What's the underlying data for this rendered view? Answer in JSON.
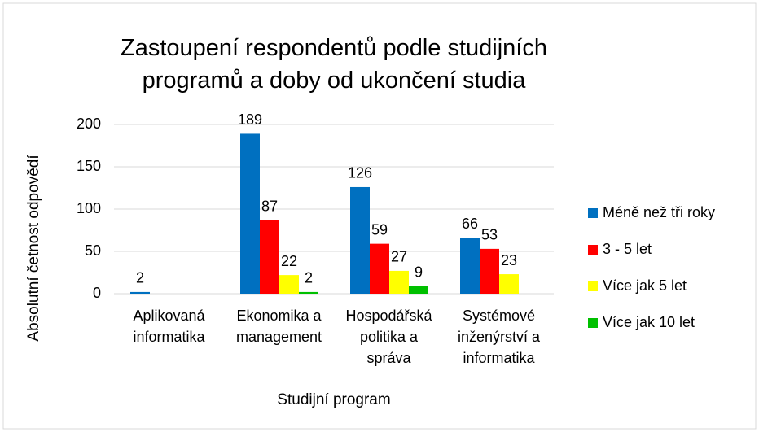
{
  "chart_data": {
    "type": "bar",
    "title": "Zastoupení respondentů podle studijních\nprogramů a doby od ukončení studia",
    "x_label": "Studijní program",
    "y_label": "Absolutní četnost odpovědí",
    "categories": [
      "Aplikovaná\ninformatika",
      "Ekonomika a\nmanagement",
      "Hospodářská\npolitika a\nspráva",
      "Systémové\ninženýrství a\ninformatika"
    ],
    "series": [
      {
        "name": "Méně než tři roky",
        "color": "#0070c0",
        "values": [
          2,
          189,
          126,
          66
        ]
      },
      {
        "name": "3 - 5 let",
        "color": "#ff0000",
        "values": [
          null,
          87,
          59,
          53
        ]
      },
      {
        "name": "Více jak 5 let",
        "color": "#ffff00",
        "values": [
          null,
          22,
          27,
          23
        ]
      },
      {
        "name": "Více jak 10 let",
        "color": "#00c000",
        "values": [
          null,
          2,
          9,
          null
        ]
      }
    ],
    "ylim": [
      0,
      200
    ],
    "yticks": [
      0,
      50,
      100,
      150,
      200
    ],
    "grid": true,
    "legend": "right"
  }
}
